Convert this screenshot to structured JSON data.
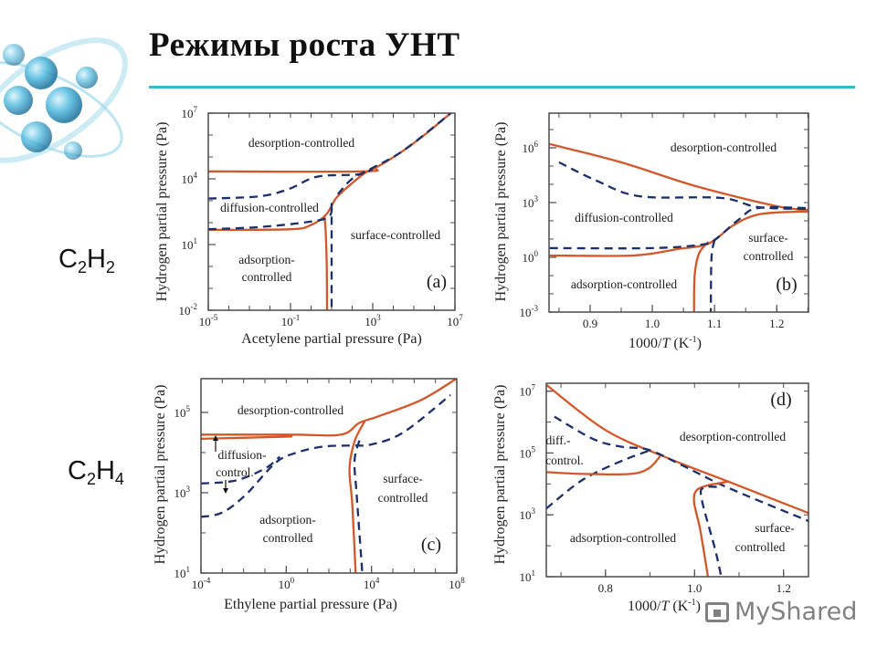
{
  "slide": {
    "title": "Режимы роста УНТ",
    "formulas": [
      {
        "parts": [
          "C",
          "2",
          "H",
          "2"
        ]
      },
      {
        "parts": [
          "C",
          "2",
          "H",
          "4"
        ]
      }
    ],
    "watermark": "MyShared"
  },
  "colors": {
    "solid_curve": "#d4572a",
    "dashed_curve": "#1c2f6b",
    "accent_rule": "#3fb3cf",
    "frame": "#4a4a4a"
  },
  "chart_data": [
    {
      "type": "line",
      "panel_tag": "(a)",
      "xlabel_parts": [
        {
          "text": "Acetylene partial pressure (Pa)"
        }
      ],
      "ylabel": "Hydrogen partial pressure (Pa)",
      "xscale": "log",
      "yscale": "log",
      "xlim": [
        1e-05,
        10000000.0
      ],
      "ylim": [
        0.01,
        10000000.0
      ],
      "xticks": [
        {
          "value": 1e-05,
          "base": "10",
          "exp": "-5"
        },
        {
          "value": 0.1,
          "base": "10",
          "exp": "-1"
        },
        {
          "value": 1000.0,
          "base": "10",
          "exp": "3"
        },
        {
          "value": 10000000.0,
          "base": "10",
          "exp": "7"
        }
      ],
      "yticks": [
        {
          "value": 10000000.0,
          "base": "10",
          "exp": "7"
        },
        {
          "value": 10000.0,
          "base": "10",
          "exp": "4"
        },
        {
          "value": 10.0,
          "base": "10",
          "exp": "1"
        },
        {
          "value": 0.01,
          "base": "10",
          "exp": "-2"
        }
      ],
      "region_labels": [
        "desorption-controlled",
        "diffusion-controlled",
        "surface-controlled",
        "adsorption-",
        "controlled"
      ],
      "series": [
        {
          "line_style": "solid",
          "points": [
            [
              1e-05,
              22000.0
            ],
            [
              316,
              22000.0
            ],
            [
              1600,
              35000.0
            ],
            [
              32000.0,
              200000.0
            ],
            [
              320000.0,
              1000000.0
            ],
            [
              6300000.0,
              10000000.0
            ]
          ]
        },
        {
          "line_style": "solid",
          "points": [
            [
              1e-05,
              47
            ],
            [
              0.1,
              50
            ],
            [
              1,
              79
            ],
            [
              5.4,
              234
            ],
            [
              16,
              1260
            ],
            [
              56,
              4000
            ],
            [
              400,
              18000.0
            ],
            [
              1600,
              35000.0
            ]
          ]
        },
        {
          "line_style": "solid",
          "points": [
            [
              4.5,
              200
            ],
            [
              5.2,
              32
            ],
            [
              5.8,
              1
            ],
            [
              6,
              0.01
            ]
          ]
        },
        {
          "line_style": "dashed",
          "points": [
            [
              1e-05,
              1260
            ],
            [
              0.0032,
              1600
            ],
            [
              0.089,
              3500
            ],
            [
              2,
              12600.0
            ],
            [
              200,
              16000.0
            ],
            [
              1000,
              28000.0
            ]
          ]
        },
        {
          "line_style": "dashed",
          "points": [
            [
              1e-05,
              50
            ],
            [
              0.0032,
              63
            ],
            [
              1,
              112
            ],
            [
              7.9,
              200
            ],
            [
              10,
              794
            ]
          ]
        },
        {
          "line_style": "dashed",
          "points": [
            [
              10,
              794
            ],
            [
              10,
              0.01
            ]
          ]
        },
        {
          "line_style": "dashed",
          "points": [
            [
              20,
              2000
            ],
            [
              100,
              10000.0
            ],
            [
              1000,
              32000.0
            ],
            [
              32000.0,
              200000.0
            ],
            [
              6300000.0,
              10000000.0
            ]
          ]
        }
      ]
    },
    {
      "type": "line",
      "panel_tag": "(b)",
      "xlabel_parts": [
        {
          "text": "1000/"
        },
        {
          "text": "T",
          "style": "italic"
        },
        {
          "text": " (K"
        },
        {
          "text": "-1",
          "style": "sup"
        },
        {
          "text": ")"
        }
      ],
      "ylabel": "Hydrogen partial pressure (Pa)",
      "xscale": "linear",
      "yscale": "log",
      "xlim": [
        0.834,
        1.251
      ],
      "ylim": [
        0.001,
        79000000.0
      ],
      "xticks": [
        {
          "value": 0.9,
          "label": "0.9"
        },
        {
          "value": 1.0,
          "label": "1.0"
        },
        {
          "value": 1.1,
          "label": "1.1"
        },
        {
          "value": 1.2,
          "label": "1.2"
        }
      ],
      "yticks": [
        {
          "value": 1000000.0,
          "base": "10",
          "exp": "6"
        },
        {
          "value": 1000.0,
          "base": "10",
          "exp": "3"
        },
        {
          "value": 1,
          "base": "10",
          "exp": "0"
        },
        {
          "value": 0.001,
          "base": "10",
          "exp": "-3"
        }
      ],
      "region_labels": [
        "desorption-controlled",
        "diffusion-controlled",
        "surface-",
        "controlled",
        "adsorption-controlled"
      ],
      "series": [
        {
          "line_style": "solid",
          "points": [
            [
              0.835,
              1600000.0
            ],
            [
              0.95,
              160000.0
            ],
            [
              1.07,
              7900
            ],
            [
              1.2,
              630
            ],
            [
              1.25,
              400
            ]
          ]
        },
        {
          "line_style": "dashed",
          "points": [
            [
              0.85,
              160000.0
            ],
            [
              0.91,
              16000.0
            ],
            [
              0.98,
              2200
            ],
            [
              1.11,
              1800
            ],
            [
              1.17,
              560
            ],
            [
              1.25,
              450
            ]
          ]
        },
        {
          "line_style": "solid",
          "points": [
            [
              0.835,
              1.26
            ],
            [
              0.97,
              1.26
            ],
            [
              1.04,
              2.8
            ],
            [
              1.09,
              5.6
            ],
            [
              1.13,
              56
            ],
            [
              1.17,
              220
            ],
            [
              1.23,
              316
            ],
            [
              1.25,
              316
            ]
          ]
        },
        {
          "line_style": "solid",
          "points": [
            [
              1.09,
              7.1
            ],
            [
              1.075,
              1.6
            ],
            [
              1.068,
              0.1
            ],
            [
              1.067,
              0.001
            ]
          ]
        },
        {
          "line_style": "dashed",
          "points": [
            [
              0.835,
              3.2
            ],
            [
              1.0,
              3.2
            ],
            [
              1.08,
              5
            ],
            [
              1.1,
              8.9
            ],
            [
              1.14,
              126
            ],
            [
              1.17,
              500
            ],
            [
              1.25,
              500
            ]
          ]
        },
        {
          "line_style": "dashed",
          "points": [
            [
              1.1,
              8.9
            ],
            [
              1.095,
              0.89
            ],
            [
              1.094,
              0.001
            ]
          ]
        }
      ]
    },
    {
      "type": "line",
      "panel_tag": "(c)",
      "xlabel_parts": [
        {
          "text": "Ethylene partial pressure (Pa)"
        }
      ],
      "ylabel": "Hydrogen partial pressure (Pa)",
      "xscale": "log",
      "yscale": "log",
      "xlim": [
        0.0001,
        100000000.0
      ],
      "ylim": [
        10,
        690000.0
      ],
      "xticks": [
        {
          "value": 0.0001,
          "base": "10",
          "exp": "-4"
        },
        {
          "value": 1,
          "base": "10",
          "exp": "0"
        },
        {
          "value": 10000.0,
          "base": "10",
          "exp": "4"
        },
        {
          "value": 100000000.0,
          "base": "10",
          "exp": "8"
        }
      ],
      "yticks": [
        {
          "value": 100000.0,
          "base": "10",
          "exp": "5"
        },
        {
          "value": 1000.0,
          "base": "10",
          "exp": "3"
        },
        {
          "value": 10,
          "base": "10",
          "exp": "1"
        }
      ],
      "region_labels": [
        "desorption-controlled",
        "diffusion-",
        "control.",
        "surface-",
        "controlled",
        "adsorption-",
        "controlled"
      ],
      "series": [
        {
          "line_style": "solid",
          "points": [
            [
              0.0001,
              28000.0
            ],
            [
              1.95,
              28000.0
            ],
            [
              370,
              28000.0
            ],
            [
              2700,
              55000.0
            ],
            [
              20000.0,
              79000.0
            ],
            [
              2000000.0,
              200000.0
            ],
            [
              100000000.0,
              700000.0
            ]
          ]
        },
        {
          "line_style": "solid",
          "points": [
            [
              0.0001,
              22000.0
            ],
            [
              1.95,
              25000.0
            ]
          ]
        },
        {
          "line_style": "solid",
          "points": [
            [
              5000,
              63000.0
            ],
            [
              1600,
              19000.0
            ],
            [
              930,
              3900
            ],
            [
              1260,
              480
            ],
            [
              1800,
              10
            ]
          ]
        },
        {
          "line_style": "dashed",
          "points": [
            [
              0.0001,
              1700
            ],
            [
              0.004,
              2000
            ],
            [
              0.1,
              4000
            ],
            [
              0.5,
              7900
            ]
          ]
        },
        {
          "line_style": "dashed",
          "points": [
            [
              0.0001,
              250
            ],
            [
              0.001,
              320
            ],
            [
              0.0126,
              890
            ],
            [
              0.32,
              5600
            ],
            [
              3.2,
              10000.0
            ],
            [
              50,
              14000.0
            ],
            [
              1000,
              15000.0
            ],
            [
              10000.0,
              16000.0
            ],
            [
              320000.0,
              32000.0
            ],
            [
              50000000.0,
              270000.0
            ]
          ]
        },
        {
          "line_style": "dashed",
          "points": [
            [
              2700,
              20000.0
            ],
            [
              1600,
              6300
            ],
            [
              2000,
              910
            ],
            [
              3700,
              10
            ]
          ]
        }
      ]
    },
    {
      "type": "line",
      "panel_tag": "(d)",
      "xlabel_parts": [
        {
          "text": "1000/"
        },
        {
          "text": "T",
          "style": "italic"
        },
        {
          "text": " (K"
        },
        {
          "text": "-1",
          "style": "sup"
        },
        {
          "text": ")"
        }
      ],
      "ylabel": "Hydrogen partial pressure (Pa)",
      "xscale": "linear",
      "yscale": "log",
      "xlim": [
        0.667,
        1.256
      ],
      "ylim": [
        10,
        18000000.0
      ],
      "xticks": [
        {
          "value": 0.8,
          "label": "0.8"
        },
        {
          "value": 1.0,
          "label": "1.0"
        },
        {
          "value": 1.2,
          "label": "1.2"
        }
      ],
      "yticks": [
        {
          "value": 10000000.0,
          "base": "10",
          "exp": "7"
        },
        {
          "value": 100000.0,
          "base": "10",
          "exp": "5"
        },
        {
          "value": 1000.0,
          "base": "10",
          "exp": "3"
        },
        {
          "value": 10,
          "base": "10",
          "exp": "1"
        }
      ],
      "region_labels": [
        "desorption-controlled",
        "diff.-",
        "control.",
        "adsorption-controlled",
        "surface-",
        "controlled"
      ],
      "series": [
        {
          "line_style": "solid",
          "points": [
            [
              0.667,
              16000000.0
            ],
            [
              0.8,
              550000.0
            ],
            [
              0.937,
              71000.0
            ],
            [
              1.075,
              12000.0
            ],
            [
              1.256,
              1150
            ]
          ]
        },
        {
          "line_style": "dashed",
          "points": [
            [
              0.685,
              1500000.0
            ],
            [
              0.773,
              280000.0
            ],
            [
              0.835,
              160000.0
            ],
            [
              0.897,
              126000.0
            ],
            [
              0.972,
              40000.0
            ],
            [
              1.075,
              7600
            ],
            [
              1.256,
              630
            ]
          ]
        },
        {
          "line_style": "dashed",
          "points": [
            [
              0.667,
              1600
            ],
            [
              0.732,
              9300
            ],
            [
              0.78,
              24000.0
            ],
            [
              0.849,
              66000.0
            ],
            [
              0.903,
              126000.0
            ]
          ]
        },
        {
          "line_style": "solid",
          "points": [
            [
              0.667,
              24000.0
            ],
            [
              0.753,
              21000.0
            ],
            [
              0.855,
              21000.0
            ],
            [
              0.897,
              32000.0
            ],
            [
              0.923,
              79000.0
            ]
          ]
        },
        {
          "line_style": "solid",
          "points": [
            [
              1.075,
              12000.0
            ],
            [
              1.06,
              10700.0
            ],
            [
              1.034,
              9300
            ],
            [
              1.005,
              6300
            ],
            [
              0.999,
              2500
            ],
            [
              1.013,
              316
            ],
            [
              1.03,
              10
            ]
          ]
        },
        {
          "line_style": "dashed",
          "points": [
            [
              1.05,
              8000
            ],
            [
              1.02,
              7600
            ],
            [
              1.016,
              3200
            ],
            [
              1.046,
              79
            ],
            [
              1.06,
              10
            ]
          ]
        }
      ]
    }
  ]
}
